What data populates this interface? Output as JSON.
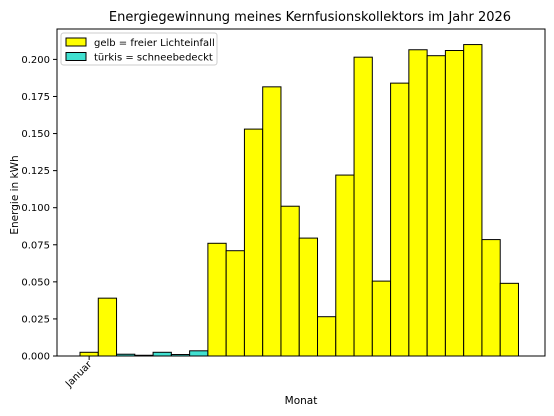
{
  "chart_data": {
    "type": "bar",
    "title": "Energiegewinnung meines Kernfusionskollektors im Jahr 2026",
    "xlabel": "Monat",
    "ylabel": "Energie in kWh",
    "x_tick_labels": [
      "Januar"
    ],
    "y_ticks": [
      "0.000",
      "0.025",
      "0.050",
      "0.075",
      "0.100",
      "0.125",
      "0.150",
      "0.175",
      "0.200"
    ],
    "ylim": [
      0,
      0.2205
    ],
    "grid": false,
    "legend_position": "top-left",
    "legend": [
      {
        "label": "gelb = freier Lichteinfall",
        "color": "#ffff00"
      },
      {
        "label": "türkis = schneebedeckt",
        "color": "#40e0d0"
      }
    ],
    "colors": {
      "sunny": "#ffff00",
      "snow": "#40e0d0",
      "edge": "#000000"
    },
    "bars": [
      {
        "value": 0.0025,
        "state": "sunny"
      },
      {
        "value": 0.039,
        "state": "sunny"
      },
      {
        "value": 0.0012,
        "state": "snow"
      },
      {
        "value": 0.0005,
        "state": "snow"
      },
      {
        "value": 0.0025,
        "state": "snow"
      },
      {
        "value": 0.001,
        "state": "snow"
      },
      {
        "value": 0.0035,
        "state": "snow"
      },
      {
        "value": 0.076,
        "state": "sunny"
      },
      {
        "value": 0.071,
        "state": "sunny"
      },
      {
        "value": 0.153,
        "state": "sunny"
      },
      {
        "value": 0.1815,
        "state": "sunny"
      },
      {
        "value": 0.101,
        "state": "sunny"
      },
      {
        "value": 0.0795,
        "state": "sunny"
      },
      {
        "value": 0.0265,
        "state": "sunny"
      },
      {
        "value": 0.122,
        "state": "sunny"
      },
      {
        "value": 0.2015,
        "state": "sunny"
      },
      {
        "value": 0.0505,
        "state": "sunny"
      },
      {
        "value": 0.184,
        "state": "sunny"
      },
      {
        "value": 0.2065,
        "state": "sunny"
      },
      {
        "value": 0.2025,
        "state": "sunny"
      },
      {
        "value": 0.206,
        "state": "sunny"
      },
      {
        "value": 0.21,
        "state": "sunny"
      },
      {
        "value": 0.0785,
        "state": "sunny"
      },
      {
        "value": 0.049,
        "state": "sunny"
      }
    ]
  }
}
